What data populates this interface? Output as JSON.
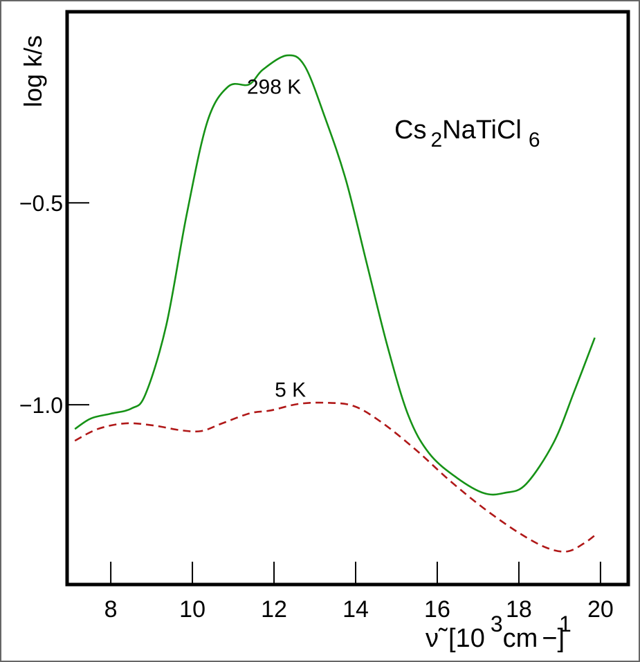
{
  "chart_data": {
    "type": "line",
    "title": "",
    "annotation_compound": {
      "base": "Cs",
      "sub1": "2",
      "mid": "NaTiCl",
      "sub2": "6"
    },
    "xlabel": {
      "symbol": "ν̃",
      "open": "[10",
      "exp": "3",
      "unit": "cm",
      "neg": "−",
      "exp2": "1",
      "close": "]"
    },
    "ylabel": "log k/s",
    "xlim": [
      6.93,
      20.68
    ],
    "ylim": [
      -1.445,
      -0.027
    ],
    "xticks": [
      8,
      10,
      12,
      14,
      16,
      18,
      20
    ],
    "xtick_labels": [
      "8",
      "10",
      "12",
      "14",
      "16",
      "18",
      "20"
    ],
    "yticks": [
      -0.5,
      -1.0
    ],
    "ytick_labels": [
      "−0.5",
      "−1.0"
    ],
    "grid": false,
    "series": [
      {
        "name": "298 K",
        "style": "solid",
        "color": "#169216",
        "x": [
          7.12,
          7.51,
          8.0,
          8.51,
          8.85,
          9.36,
          9.86,
          10.37,
          10.88,
          11.39,
          11.73,
          12.32,
          12.75,
          13.25,
          13.76,
          14.27,
          14.78,
          15.29,
          15.8,
          16.47,
          17.15,
          17.66,
          18.17,
          18.85,
          19.36,
          19.86
        ],
        "y": [
          -1.06,
          -1.034,
          -1.022,
          -1.009,
          -0.974,
          -0.803,
          -0.529,
          -0.298,
          -0.212,
          -0.207,
          -0.17,
          -0.135,
          -0.161,
          -0.289,
          -0.443,
          -0.649,
          -0.855,
          -1.026,
          -1.12,
          -1.18,
          -1.219,
          -1.218,
          -1.197,
          -1.094,
          -0.966,
          -0.834
        ],
        "label_pos": [
          12.0,
          -0.23
        ]
      },
      {
        "name": "5 K",
        "style": "dashed",
        "color": "#b01818",
        "x": [
          7.12,
          7.68,
          8.36,
          9.03,
          9.71,
          10.22,
          10.73,
          11.41,
          11.92,
          12.59,
          13.27,
          13.95,
          14.63,
          15.47,
          16.31,
          17.15,
          18.0,
          18.68,
          19.19,
          19.61,
          19.9
        ],
        "y": [
          -1.089,
          -1.06,
          -1.046,
          -1.051,
          -1.063,
          -1.065,
          -1.046,
          -1.021,
          -1.014,
          -0.998,
          -0.995,
          -1.003,
          -1.043,
          -1.111,
          -1.188,
          -1.257,
          -1.317,
          -1.354,
          -1.363,
          -1.342,
          -1.32
        ],
        "label_pos": [
          12.4,
          -0.98
        ]
      }
    ]
  }
}
